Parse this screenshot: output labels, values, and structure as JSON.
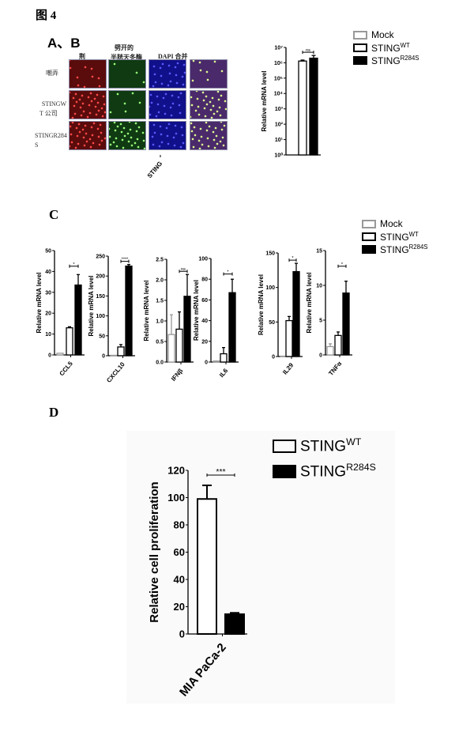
{
  "figure_title": "图 4",
  "panel_ab": {
    "label": "A、B",
    "column_headers": [
      "荆",
      "劈开的",
      "半胱天冬酶",
      "DAPI 合并"
    ],
    "row_labels": [
      [
        "嘲弄"
      ],
      [
        "STINGW",
        "T 公司"
      ],
      [
        "STINGR284",
        "S"
      ]
    ],
    "image_colors": [
      "#5a0c0c",
      "#0f3a12",
      "#10108a",
      "#4a2a6a"
    ]
  },
  "legend_abc": [
    {
      "name": "Mock",
      "style": "gray-outline"
    },
    {
      "name": "STING",
      "sup": "WT",
      "style": "black-outline"
    },
    {
      "name": "STING",
      "sup": "R284S",
      "style": "filled-black"
    }
  ],
  "panel_c_label": "C",
  "panel_d_label": "D",
  "legend_d": [
    {
      "name": "STING",
      "sup": "WT",
      "style": "black-outline"
    },
    {
      "name": "STING",
      "sup": "R284S",
      "style": "filled-black"
    }
  ],
  "chart_data": [
    {
      "id": "sting",
      "type": "bar",
      "scale": "log",
      "category": "STING",
      "ylabel": "Relative mRNA level",
      "yticks": [
        "10⁰",
        "10¹",
        "10²",
        "10³",
        "10⁴",
        "10⁵",
        "10⁶",
        "10⁷"
      ],
      "ylim": [
        1,
        10000000
      ],
      "series": [
        "Mock",
        "STINGWT",
        "STINGR284S"
      ],
      "values": [
        null,
        1300000,
        2000000
      ],
      "errors": [
        null,
        200000,
        1000000
      ],
      "sig": "ns"
    },
    {
      "id": "ccl5",
      "type": "bar",
      "category": "CCL5",
      "ylabel": "Relative mRNA level",
      "yticks": [
        "0",
        "10",
        "20",
        "30",
        "40",
        "50"
      ],
      "ylim": [
        0,
        50
      ],
      "values": [
        0.8,
        13,
        33.5
      ],
      "errors": [
        0,
        0.5,
        5
      ],
      "sig": "*"
    },
    {
      "id": "cxcl10",
      "type": "bar",
      "category": "CXCL10",
      "ylabel": "Relative mRNA level",
      "yticks": [
        "0",
        "50",
        "100",
        "150",
        "200",
        "250"
      ],
      "ylim": [
        0,
        250
      ],
      "values": [
        1,
        22,
        225
      ],
      "errors": [
        0,
        6,
        4
      ],
      "sig": "****"
    },
    {
      "id": "ifnb",
      "type": "bar",
      "category": "IFNβ",
      "ylabel": "Relative mRNA level",
      "yticks": [
        "0.0",
        "0.5",
        "1.0",
        "1.5",
        "2.0",
        "2.5"
      ],
      "ylim": [
        0,
        2.5
      ],
      "values": [
        0.67,
        0.8,
        1.6
      ],
      "errors": [
        0.48,
        0.42,
        0.53
      ],
      "sig": "ns"
    },
    {
      "id": "il6",
      "type": "bar",
      "category": "IL6",
      "ylabel": "Relative mRNA level",
      "yticks": [
        "0",
        "20",
        "40",
        "60",
        "80",
        "100"
      ],
      "ylim": [
        0,
        100
      ],
      "values": [
        1,
        8,
        67
      ],
      "errors": [
        0,
        6,
        13
      ],
      "sig": "*"
    },
    {
      "id": "il29",
      "type": "bar",
      "category": "IL29",
      "ylabel": "Relative mRNA level",
      "yticks": [
        "0",
        "50",
        "100",
        "150"
      ],
      "ylim": [
        0,
        150
      ],
      "values": [
        0.5,
        52,
        123
      ],
      "errors": [
        0,
        6,
        12
      ],
      "sig": "*"
    },
    {
      "id": "tnfa",
      "type": "bar",
      "category": "TNFα",
      "ylabel": "Relative mRNA level",
      "yticks": [
        "0",
        "5",
        "10",
        "15"
      ],
      "ylim": [
        0,
        15
      ],
      "values": [
        1.2,
        2.8,
        8.9
      ],
      "errors": [
        0.4,
        0.5,
        1.7
      ],
      "sig": "*"
    },
    {
      "id": "prolif",
      "type": "bar",
      "category": "MIA PaCa-2",
      "ylabel": "Relative cell proliferation",
      "yticks": [
        "0",
        "20",
        "40",
        "60",
        "80",
        "100",
        "120"
      ],
      "ylim": [
        0,
        120
      ],
      "series": [
        "STINGWT",
        "STINGR284S"
      ],
      "values": [
        99,
        14.5
      ],
      "errors": [
        10,
        1
      ],
      "sig": "***"
    }
  ]
}
